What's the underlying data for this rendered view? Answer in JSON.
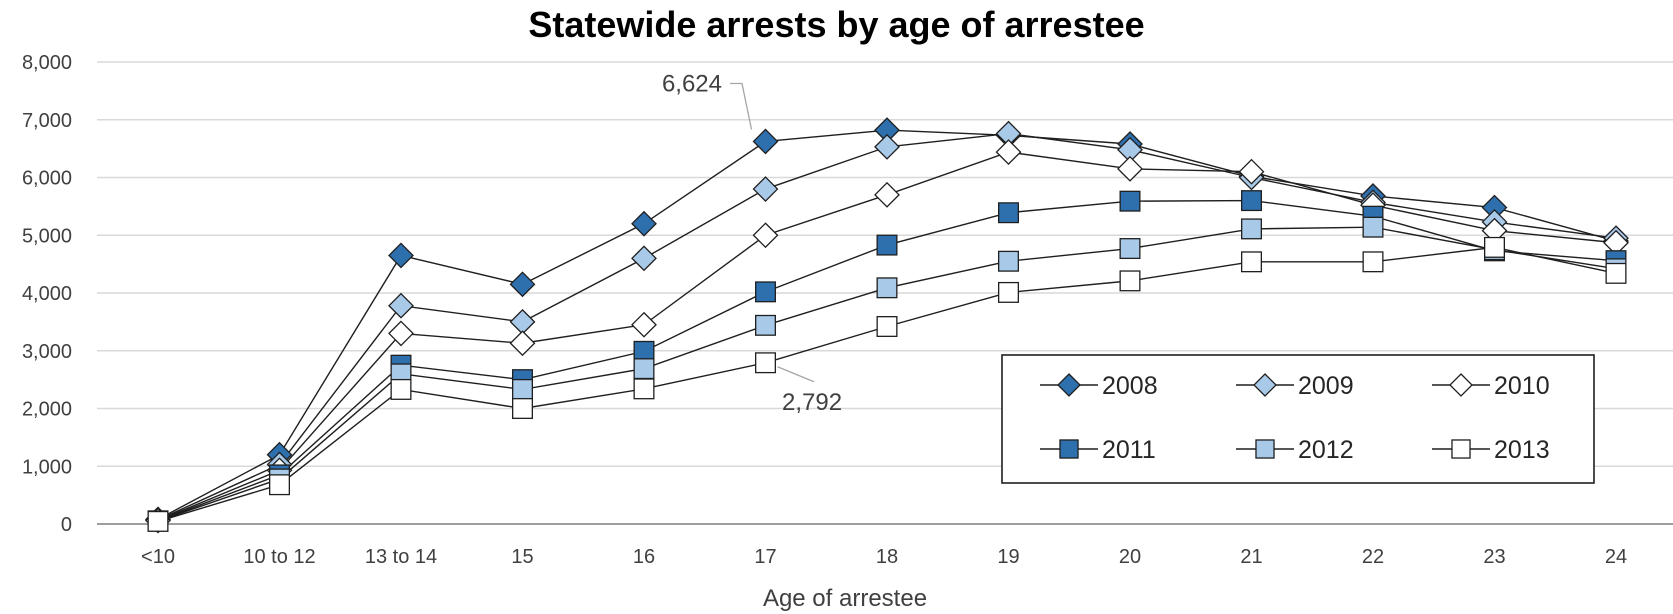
{
  "chart_data": {
    "type": "line",
    "title": "Statewide arrests by age of arrestee",
    "xlabel": "Age of arrestee",
    "ylabel": "",
    "categories": [
      "<10",
      "10 to 12",
      "13 to 14",
      "15",
      "16",
      "17",
      "18",
      "19",
      "20",
      "21",
      "22",
      "23",
      "24"
    ],
    "ylim": [
      0,
      8000
    ],
    "yticks": [
      "0",
      "1,000",
      "2,000",
      "3,000",
      "4,000",
      "5,000",
      "6,000",
      "7,000",
      "8,000"
    ],
    "grid": true,
    "legend_position": "bottom-right",
    "series": [
      {
        "name": "2008",
        "marker": "diamond",
        "fill": "#2e6fad",
        "values": [
          80,
          1200,
          4650,
          4150,
          5200,
          6624,
          6820,
          6730,
          6580,
          6020,
          5680,
          5480,
          4900
        ]
      },
      {
        "name": "2009",
        "marker": "diamond",
        "fill": "#a9c9e8",
        "values": [
          70,
          1030,
          3780,
          3500,
          4600,
          5800,
          6530,
          6760,
          6480,
          6000,
          5570,
          5230,
          4950
        ]
      },
      {
        "name": "2010",
        "marker": "diamond",
        "fill": "#ffffff",
        "values": [
          60,
          930,
          3300,
          3130,
          3450,
          5000,
          5700,
          6440,
          6150,
          6100,
          5520,
          5080,
          4870
        ]
      },
      {
        "name": "2011",
        "marker": "square",
        "fill": "#2e6fad",
        "values": [
          55,
          850,
          2750,
          2500,
          2990,
          4020,
          4830,
          5390,
          5590,
          5600,
          5330,
          4730,
          4560
        ]
      },
      {
        "name": "2012",
        "marker": "square",
        "fill": "#a9c9e8",
        "values": [
          50,
          780,
          2600,
          2330,
          2690,
          3440,
          4090,
          4550,
          4770,
          5110,
          5140,
          4750,
          4420
        ]
      },
      {
        "name": "2013",
        "marker": "square",
        "fill": "#ffffff",
        "values": [
          45,
          680,
          2330,
          2000,
          2340,
          2792,
          3420,
          4010,
          4210,
          4540,
          4540,
          4790,
          4340
        ]
      }
    ],
    "annotations": [
      {
        "text": "6,624",
        "series": "2008",
        "category": "17",
        "value": 6624
      },
      {
        "text": "2,792",
        "series": "2013",
        "category": "17",
        "value": 2792
      }
    ]
  }
}
